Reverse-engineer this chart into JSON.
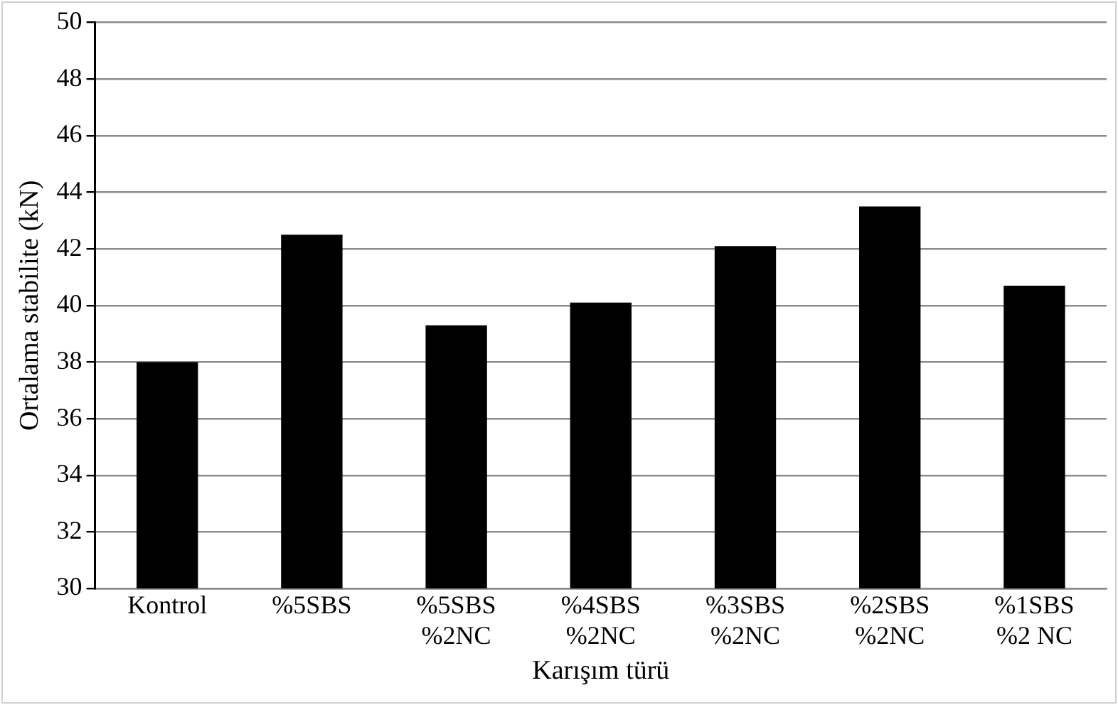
{
  "chart_data": {
    "type": "bar",
    "xlabel": "Karışım türü",
    "ylabel": "Ortalama stabilite (kN)",
    "categories": [
      "Kontrol",
      "%5SBS",
      "%5SBS\n%2NC",
      "%4SBS\n%2NC",
      "%3SBS\n%2NC",
      "%2SBS\n%2NC",
      "%1SBS\n%2 NC"
    ],
    "values": [
      38.0,
      42.5,
      39.3,
      40.1,
      42.1,
      43.5,
      40.7
    ],
    "color": "#000000",
    "ylim": [
      30,
      50
    ],
    "yticks": [
      30,
      32,
      34,
      36,
      38,
      40,
      42,
      44,
      46,
      48,
      50
    ],
    "grid": "y",
    "legend": false
  }
}
